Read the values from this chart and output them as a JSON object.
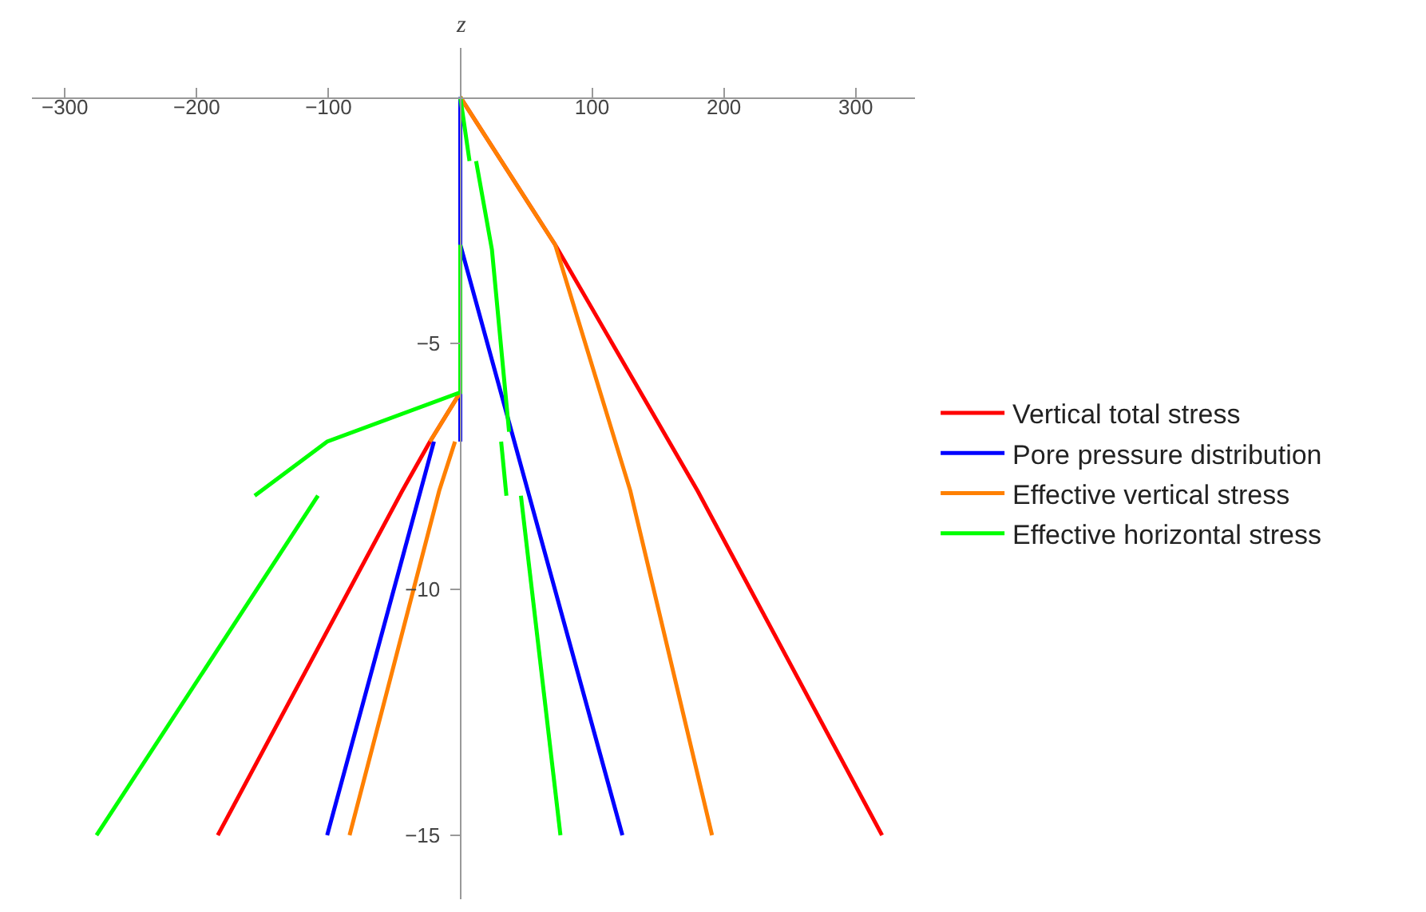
{
  "chart_data": {
    "type": "line",
    "ylabel": "z",
    "xlim": [
      -325,
      345
    ],
    "ylim": [
      -16.3,
      1
    ],
    "xticks": [
      -300,
      -200,
      -100,
      100,
      200,
      300
    ],
    "yticks": [
      -15,
      -10,
      -5
    ],
    "grid": false,
    "legend": "right",
    "marker": "none",
    "line_style": "solid",
    "series": [
      {
        "name": "Vertical total stress",
        "color": "#ff0000",
        "x": [
          0,
          72,
          180,
          320,
          null,
          0,
          -23,
          -44,
          -184
        ],
        "values": [
          0,
          -3,
          -8,
          -15,
          null,
          -6,
          -7,
          -8,
          -15
        ]
      },
      {
        "name": "Pore pressure distribution",
        "color": "#0000ff",
        "x": [
          0,
          0,
          123,
          null,
          0,
          0,
          null,
          -20,
          -101
        ],
        "values": [
          0,
          -3,
          -15,
          null,
          -6,
          -7,
          null,
          -7,
          -15
        ]
      },
      {
        "name": "Effective vertical stress",
        "color": "#ff8000",
        "x": [
          0,
          72,
          129,
          191,
          null,
          0,
          -23,
          null,
          -4,
          -16,
          -84
        ],
        "values": [
          0,
          -3,
          -8,
          -15,
          null,
          -6,
          -7,
          null,
          -7,
          -8,
          -15
        ]
      },
      {
        "name": "Effective horizontal stress",
        "color": "#00ff00",
        "x": [
          0,
          7,
          null,
          12,
          24,
          37,
          null,
          31,
          35,
          null,
          46,
          76,
          null,
          0,
          0,
          -101,
          -156,
          null,
          -108,
          -276
        ],
        "values": [
          0,
          -1.3,
          null,
          -1.3,
          -3.1,
          -6.8,
          null,
          -7,
          -8.1,
          null,
          -8.1,
          -15,
          null,
          -3,
          -6,
          -7,
          -8.1,
          null,
          -8.1,
          -15
        ]
      }
    ]
  }
}
